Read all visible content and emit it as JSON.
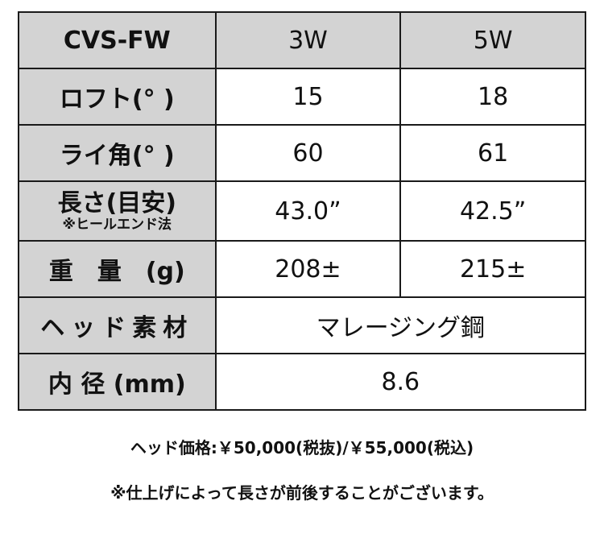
{
  "table": {
    "header": [
      "CVS-FW",
      "3W",
      "5W"
    ],
    "rows": [
      {
        "label": "ロフト(° )",
        "values": [
          "15",
          "18"
        ]
      },
      {
        "label": "ライ角(° )",
        "values": [
          "60",
          "61"
        ]
      },
      {
        "label": "長さ(目安)",
        "sublabel": "※ヒールエンド法",
        "values": [
          "43.0”",
          "42.5”"
        ]
      },
      {
        "label": "重　量　(g)",
        "values": [
          "208±",
          "215±"
        ]
      },
      {
        "label": "ヘッド素材",
        "value": "マレージング鋼"
      },
      {
        "label": "内 径 (mm)",
        "value": "8.6"
      }
    ]
  },
  "notes": {
    "price": "ヘッド価格:￥50,000(税抜)/￥55,000(税込)",
    "disclaimer": "※仕上げによって長さが前後することがございます。"
  }
}
